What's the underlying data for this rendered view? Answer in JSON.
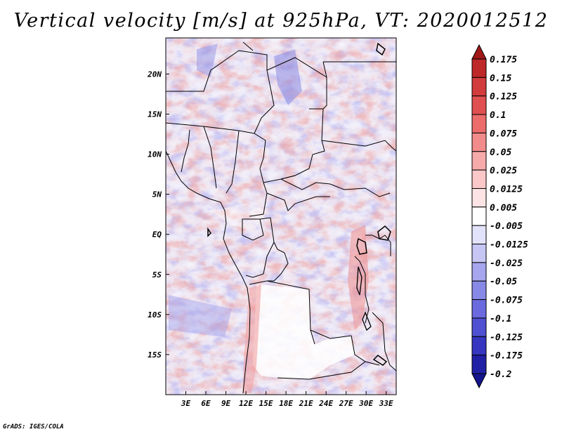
{
  "title": "Vertical velocity [m/s] at 925hPa, VT: 2020012512",
  "footer": "GrADS: IGES/COLA",
  "map": {
    "lon_range": [
      0,
      34.5
    ],
    "lat_range": [
      -20,
      24.5
    ],
    "x_ticks": [
      "3E",
      "6E",
      "9E",
      "12E",
      "15E",
      "18E",
      "21E",
      "24E",
      "27E",
      "30E",
      "33E"
    ],
    "x_tick_values": [
      3,
      6,
      9,
      12,
      15,
      18,
      21,
      24,
      27,
      30,
      33
    ],
    "y_ticks": [
      "20N",
      "15N",
      "10N",
      "5N",
      "EQ",
      "5S",
      "10S",
      "15S"
    ],
    "y_tick_values": [
      20,
      15,
      10,
      5,
      0,
      -5,
      -10,
      -15
    ]
  },
  "colorbar": {
    "labels": [
      "0.175",
      "0.15",
      "0.125",
      "0.1",
      "0.075",
      "0.05",
      "0.025",
      "0.0125",
      "0.005",
      "-0.005",
      "-0.0125",
      "-0.025",
      "-0.05",
      "-0.075",
      "-0.1",
      "-0.125",
      "-0.175",
      "-0.2"
    ],
    "colors": [
      "#a01818",
      "#be2828",
      "#d23c3c",
      "#e05050",
      "#ec6c6c",
      "#f28c8c",
      "#f7aaaa",
      "#fac8c8",
      "#fde4e4",
      "#ffffff",
      "#e2e2fb",
      "#c6c6f5",
      "#a6a6ee",
      "#8888e6",
      "#6a6ade",
      "#5050d2",
      "#3636c0",
      "#2020a6",
      "#14148c"
    ]
  }
}
